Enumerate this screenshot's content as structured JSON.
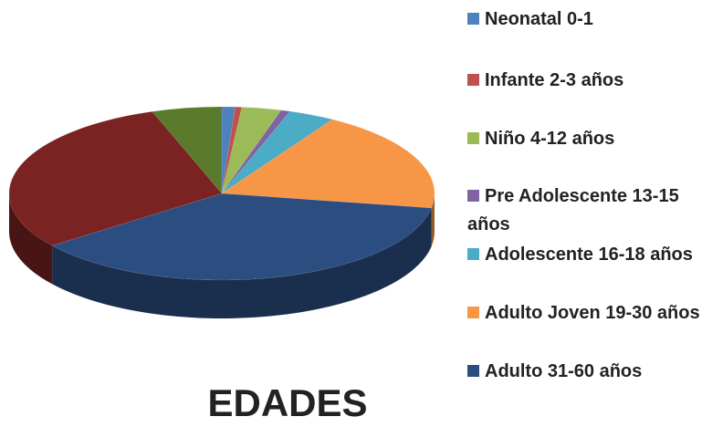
{
  "chart_data": {
    "type": "pie",
    "title": "EDADES",
    "categories": [
      "Neonatal 0-1",
      "Infante 2-3 años",
      "Niño 4-12 años",
      "Pre Adolescente 13-15 años",
      "Adolescente 16-18 años",
      "Adulto Joven 19-30 años",
      "Adulto  31-60 años",
      null,
      null
    ],
    "values": [
      1,
      0.5,
      3,
      0.7,
      3.5,
      19,
      37,
      30,
      5.3
    ],
    "colors": [
      "#4f81bd",
      "#c0504d",
      "#9bbb59",
      "#8064a2",
      "#4bacc6",
      "#f79646",
      "#2c4d80",
      "#7a2322",
      "#5a7a2c"
    ],
    "legend": "right"
  }
}
